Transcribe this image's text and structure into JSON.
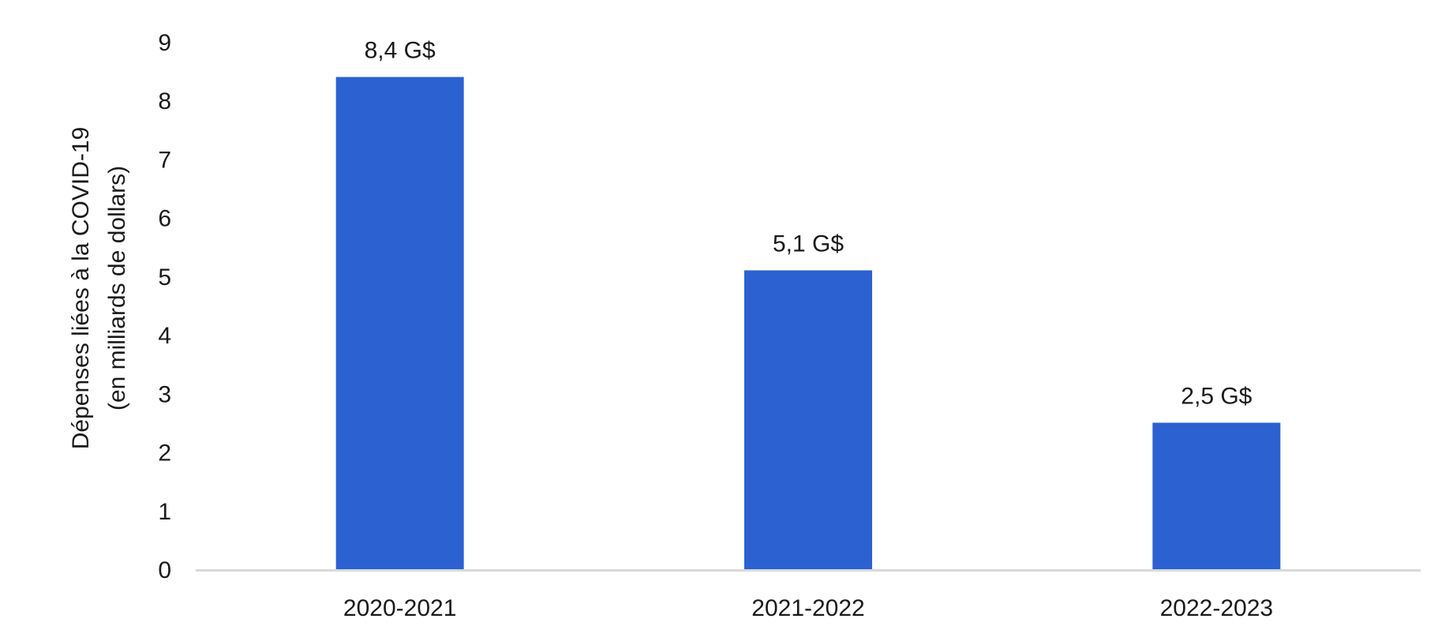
{
  "chart_data": {
    "type": "bar",
    "categories": [
      "2020-2021",
      "2021-2022",
      "2022-2023"
    ],
    "values": [
      8.4,
      5.1,
      2.5
    ],
    "data_labels": [
      "8,4 G$",
      "5,1 G$",
      "2,5 G$"
    ],
    "ylabel": "Dépenses liées à la COVID-19",
    "ylabel_line2": "(en milliards de dollars)",
    "xlabel": "",
    "ylim": [
      0,
      9
    ],
    "yticks": [
      0,
      1,
      2,
      3,
      4,
      5,
      6,
      7,
      8,
      9
    ],
    "grid": false,
    "legend": "none",
    "bar_color": "#2b61d1",
    "axis_color": "#d9d9d9"
  }
}
